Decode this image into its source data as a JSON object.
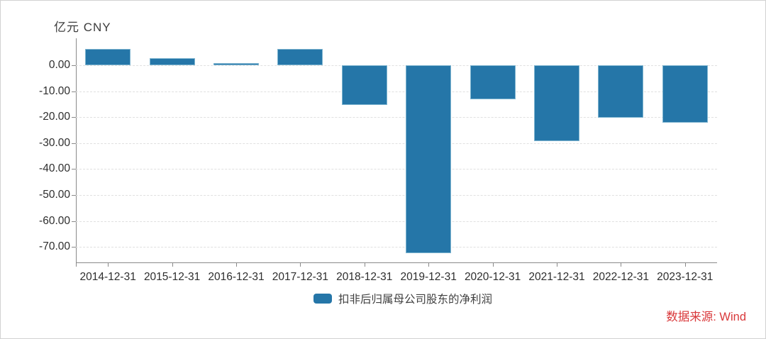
{
  "frame": {
    "unit_label": "亿元 CNY"
  },
  "chart_data": {
    "type": "bar",
    "title": "",
    "xlabel": "",
    "ylabel": "亿元 CNY",
    "categories": [
      "2014-12-31",
      "2015-12-31",
      "2016-12-31",
      "2017-12-31",
      "2018-12-31",
      "2019-12-31",
      "2020-12-31",
      "2021-12-31",
      "2022-12-31",
      "2023-12-31"
    ],
    "series": [
      {
        "name": "扣非后归属母公司股东的净利润",
        "values": [
          6.2,
          2.7,
          0.8,
          6.3,
          -15.2,
          -72.4,
          -13.0,
          -29.2,
          -20.2,
          -22.1
        ]
      }
    ],
    "y_ticks": [
      0,
      -10,
      -20,
      -30,
      -40,
      -50,
      -60,
      -70
    ],
    "y_tick_labels": [
      "0.00",
      "-10.00",
      "-20.00",
      "-30.00",
      "-40.00",
      "-50.00",
      "-60.00",
      "-70.00"
    ],
    "ylim": [
      -76,
      10.4
    ],
    "grid": "horizontal-dashed",
    "legend_position": "bottom-center",
    "bar_color": "#2576a8"
  },
  "legend": {
    "label": "扣非后归属母公司股东的净利润",
    "swatch_color": "#2576a8"
  },
  "source": {
    "text": "数据来源: Wind",
    "color": "#d9383a"
  }
}
